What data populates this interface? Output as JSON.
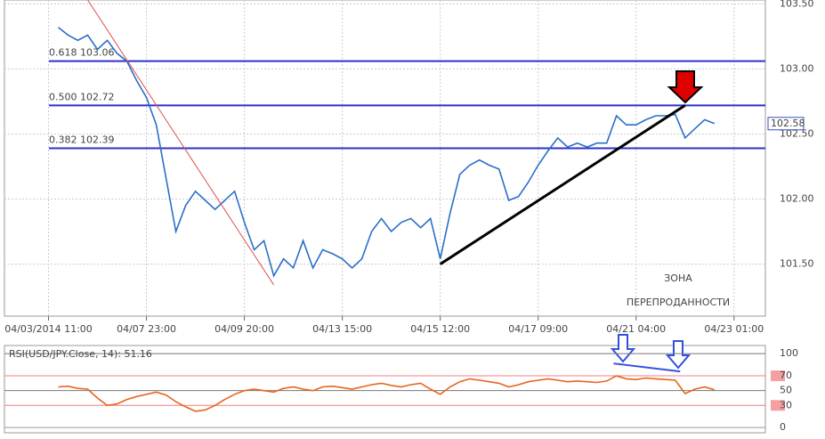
{
  "chart_data": [
    {
      "type": "line",
      "color": "#2a6fc9",
      "x": [
        1,
        2,
        3,
        4,
        5,
        6,
        7,
        8,
        9,
        10,
        11,
        12,
        13,
        14,
        15,
        16,
        17,
        18,
        19,
        20,
        21,
        22,
        23,
        24,
        25,
        26,
        27,
        28,
        29,
        30,
        31,
        32,
        33,
        34,
        35,
        36,
        37,
        38,
        39,
        40,
        41,
        42,
        43,
        44,
        45,
        46,
        47,
        48,
        49,
        50,
        51,
        52,
        53,
        54,
        55,
        56,
        57,
        58,
        59,
        60,
        61,
        62,
        63,
        64,
        65,
        66,
        67,
        68
      ],
      "values": [
        103.32,
        103.26,
        103.22,
        103.26,
        103.15,
        103.22,
        103.12,
        103.06,
        102.91,
        102.78,
        102.57,
        102.16,
        101.75,
        101.95,
        102.06,
        101.99,
        101.92,
        101.99,
        102.06,
        101.82,
        101.61,
        101.68,
        101.41,
        101.54,
        101.47,
        101.68,
        101.47,
        101.61,
        101.58,
        101.54,
        101.47,
        101.54,
        101.75,
        101.85,
        101.75,
        101.82,
        101.85,
        101.78,
        101.85,
        101.54,
        101.89,
        102.19,
        102.26,
        102.3,
        102.26,
        102.23,
        101.99,
        102.02,
        102.13,
        102.26,
        102.37,
        102.47,
        102.4,
        102.43,
        102.4,
        102.43,
        102.43,
        102.64,
        102.57,
        102.57,
        102.61,
        102.64,
        102.64,
        102.65,
        102.47,
        102.54,
        102.61,
        102.58
      ],
      "xlim": [
        -4.5,
        73.2
      ],
      "xticks": [
        {
          "value": 0,
          "label": "04/03/2014 11:00"
        },
        {
          "value": 10,
          "label": "04/07 23:00"
        },
        {
          "value": 20,
          "label": "04/09 20:00"
        },
        {
          "value": 30,
          "label": "04/13 15:00"
        },
        {
          "value": 40,
          "label": "04/15 12:00"
        },
        {
          "value": 50,
          "label": "04/17 09:00"
        },
        {
          "value": 60,
          "label": "04/21 04:00"
        },
        {
          "value": 70,
          "label": "04/23 01:00"
        }
      ],
      "ylim": [
        101.1,
        103.53
      ],
      "yticks": [
        {
          "value": 101.5,
          "label": "101.50"
        },
        {
          "value": 102,
          "label": "102.00"
        },
        {
          "value": 102.5,
          "label": "102.50"
        },
        {
          "value": 103,
          "label": "103.00"
        },
        {
          "value": 103.5,
          "label": "103.50"
        }
      ],
      "grid": true,
      "last_value": 102.58,
      "levels": [
        {
          "label": "0.618 103.06",
          "value": 103.06
        },
        {
          "label": "0.500 102.72",
          "value": 102.72
        },
        {
          "label": "0.382 102.39",
          "value": 102.39
        }
      ],
      "level_color": "#3030c8",
      "trendlines": [
        {
          "color": "#e05050",
          "x": [
            4,
            23
          ],
          "y": [
            103.53,
            101.34
          ]
        },
        {
          "color": "#000000",
          "x": [
            40,
            65
          ],
          "y": [
            101.5,
            102.72
          ]
        }
      ],
      "annotation": [
        "ЗОНА",
        "ПЕРЕПРОДАННОСТИ"
      ]
    },
    {
      "type": "line",
      "color": "#e8641e",
      "title": "RSI(USD/JPY.Close, 14): 51.16",
      "x": [
        1,
        2,
        3,
        4,
        5,
        6,
        7,
        8,
        9,
        10,
        11,
        12,
        13,
        14,
        15,
        16,
        17,
        18,
        19,
        20,
        21,
        22,
        23,
        24,
        25,
        26,
        27,
        28,
        29,
        30,
        31,
        32,
        33,
        34,
        35,
        36,
        37,
        38,
        39,
        40,
        41,
        42,
        43,
        44,
        45,
        46,
        47,
        48,
        49,
        50,
        51,
        52,
        53,
        54,
        55,
        56,
        57,
        58,
        59,
        60,
        61,
        62,
        63,
        64,
        65,
        66,
        67,
        68
      ],
      "values": [
        55,
        56,
        53,
        52,
        40,
        30,
        32,
        38,
        42,
        45,
        48,
        44,
        35,
        28,
        22,
        24,
        30,
        38,
        45,
        50,
        52,
        50,
        48,
        53,
        55,
        52,
        50,
        55,
        56,
        54,
        52,
        55,
        58,
        60,
        57,
        55,
        58,
        60,
        52,
        45,
        55,
        62,
        66,
        64,
        62,
        60,
        55,
        58,
        62,
        64,
        66,
        64,
        62,
        63,
        62,
        61,
        63,
        70,
        66,
        65,
        67,
        66,
        65,
        64,
        46,
        52,
        55,
        51
      ],
      "xlim": [
        -4.5,
        73.2
      ],
      "ylim": [
        -7,
        111
      ],
      "yticks": [
        0,
        30,
        50,
        70,
        100
      ],
      "tick_colors": [
        "#999999",
        "#f08080",
        "#777777",
        "#f08080",
        "#777777"
      ],
      "trendlines": [
        {
          "color": "#3050e0",
          "x": [
            57.7,
            64.5
          ],
          "y": [
            86.7,
            75.9
          ]
        }
      ]
    }
  ]
}
